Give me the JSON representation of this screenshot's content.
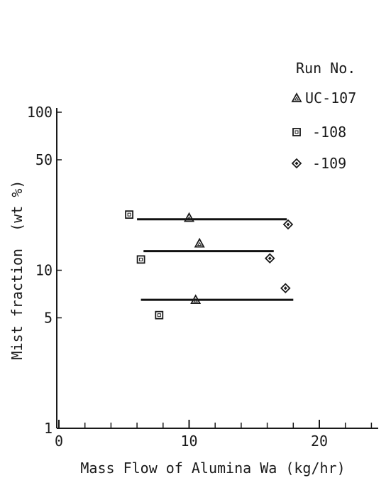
{
  "chart_data": {
    "type": "scatter",
    "xlabel": "Mass Flow of Alumina Wa (kg/hr)",
    "ylabel": "Mist fraction  (wt %)",
    "xlim": [
      0,
      25
    ],
    "ylim": [
      1,
      100
    ],
    "yscale": "log",
    "grid": false,
    "x_ticks": [
      0,
      10,
      20
    ],
    "x_tick_labels": [
      "0",
      "10",
      "20"
    ],
    "x_minor_ticks": [
      2,
      4,
      6,
      8,
      12,
      14,
      16,
      18,
      22,
      24
    ],
    "y_ticks": [
      1,
      5,
      10,
      50,
      100
    ],
    "y_tick_labels": [
      "1",
      "5",
      "10",
      "50",
      "100"
    ],
    "legend_title": "Run No.",
    "legend_position": "top-right",
    "series": [
      {
        "name": "UC-107",
        "marker": "triangle",
        "points": [
          {
            "x": 10.0,
            "y": 21.5
          },
          {
            "x": 10.8,
            "y": 14.8
          },
          {
            "x": 10.5,
            "y": 6.5
          }
        ]
      },
      {
        "name": "-108",
        "marker": "square",
        "points": [
          {
            "x": 5.4,
            "y": 22.5
          },
          {
            "x": 6.3,
            "y": 11.7
          },
          {
            "x": 7.7,
            "y": 5.2
          }
        ]
      },
      {
        "name": "-109",
        "marker": "diamond",
        "points": [
          {
            "x": 17.6,
            "y": 19.5
          },
          {
            "x": 16.2,
            "y": 11.9
          },
          {
            "x": 17.4,
            "y": 7.7
          }
        ]
      }
    ],
    "fit_lines": [
      {
        "x": [
          6.0,
          17.5
        ],
        "y": [
          21.0,
          21.0
        ]
      },
      {
        "x": [
          6.5,
          16.5
        ],
        "y": [
          13.2,
          13.2
        ]
      },
      {
        "x": [
          6.3,
          18.0
        ],
        "y": [
          6.5,
          6.5
        ]
      }
    ]
  }
}
